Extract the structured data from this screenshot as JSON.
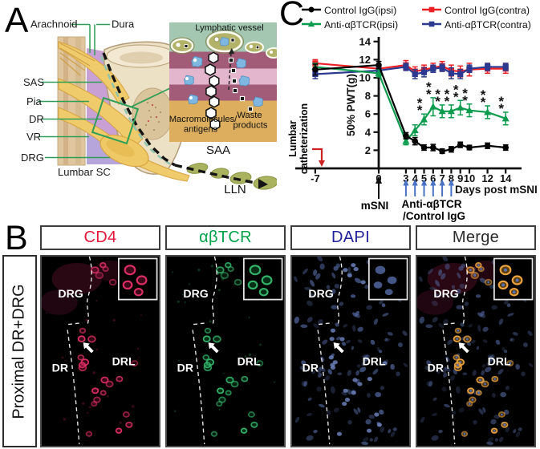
{
  "panel_a": {
    "label": "A",
    "labels": {
      "arachnoid": "Arachnoid",
      "dura": "Dura",
      "sas": "SAS",
      "pia": "Pia",
      "dr": "DR",
      "vr": "VR",
      "drg": "DRG"
    },
    "caption": "Lumbar SC",
    "inset": {
      "title": "Lymphatic vessel",
      "macromolecules_line1": "Macromolecules/",
      "macromolecules_line2": "antigens",
      "waste_line1": "Waste",
      "waste_line2": "products",
      "caption": "SAA"
    },
    "lln": "LLN"
  },
  "panel_c": {
    "label": "C"
  },
  "panel_b": {
    "label": "B",
    "row_label": "Proximal DR+DRG",
    "channels": [
      {
        "id": "cd4",
        "name": "CD4",
        "color": "#e3173a"
      },
      {
        "id": "abtcr",
        "name": "αβTCR",
        "color": "#00a14b"
      },
      {
        "id": "dapi",
        "name": "DAPI",
        "color": "#22219b"
      },
      {
        "id": "merge",
        "name": "Merge",
        "color": "#2a2a2a"
      }
    ],
    "region_labels": {
      "drg": "DRG",
      "dr": "DR",
      "drl": "DRL"
    }
  },
  "chart_data": {
    "type": "line",
    "title": "",
    "xlabel": "Days post mSNI",
    "ylabel": "50% PWT(g)",
    "x": [
      -7,
      0,
      3,
      4,
      5,
      6,
      7,
      8,
      9,
      10,
      12,
      14
    ],
    "xtick_labels": [
      "-7",
      "0",
      "3",
      "4",
      "5",
      "6",
      "7",
      "8",
      "9",
      "10",
      "12",
      "14"
    ],
    "ylim": [
      0,
      14
    ],
    "yticks": [
      2,
      4,
      6,
      8,
      10,
      12,
      14
    ],
    "grid": false,
    "legend_position": "top",
    "series": [
      {
        "name": "Control IgG(ipsi)",
        "color": "#000000",
        "marker": "circle",
        "values": [
          10.9,
          11.4,
          3.6,
          3.0,
          2.3,
          2.3,
          1.9,
          2.1,
          2.6,
          2.3,
          2.5,
          2.3
        ],
        "errors": [
          0.6,
          0.4,
          0.35,
          0.4,
          0.3,
          0.35,
          0.25,
          0.3,
          0.3,
          0.25,
          0.3,
          0.3
        ]
      },
      {
        "name": "Control IgG(contra)",
        "color": "#ec2024",
        "marker": "square",
        "values": [
          11.6,
          11.0,
          11.4,
          10.7,
          10.9,
          11.1,
          11.3,
          10.8,
          10.7,
          10.9,
          11.0,
          11.0
        ],
        "errors": [
          0.4,
          0.4,
          0.5,
          0.5,
          0.5,
          0.5,
          0.5,
          0.6,
          0.6,
          0.7,
          0.5,
          0.5
        ]
      },
      {
        "name": "Anti-αβTCR(ipsi)",
        "color": "#0d9c4e",
        "marker": "triangle",
        "values": [
          11.2,
          10.5,
          3.0,
          4.2,
          5.4,
          6.8,
          6.3,
          6.3,
          6.7,
          6.4,
          6.2,
          5.5
        ],
        "errors": [
          0.4,
          0.4,
          0.4,
          0.6,
          0.6,
          1.0,
          0.7,
          0.7,
          0.8,
          0.7,
          0.7,
          0.7
        ]
      },
      {
        "name": "Anti-αβTCR(contra)",
        "color": "#2b3a90",
        "marker": "square",
        "values": [
          10.4,
          10.8,
          11.2,
          10.4,
          10.6,
          11.0,
          11.1,
          10.5,
          10.4,
          11.0,
          11.2,
          11.2
        ],
        "errors": [
          0.5,
          0.4,
          0.4,
          0.5,
          0.5,
          0.4,
          0.4,
          0.6,
          0.5,
          0.4,
          0.4,
          0.4
        ]
      }
    ],
    "significance": {
      "symbol": "**",
      "series": "Anti-αβTCR(ipsi)",
      "days": [
        5,
        6,
        7,
        8,
        9,
        10,
        12,
        14
      ]
    },
    "annotations": {
      "lumbar_line1": "Lumbar",
      "lumbar_line2": "catheterization",
      "msni": "mSNI",
      "treatment_line1": "Anti-αβTCR",
      "treatment_line2": "/Control IgG",
      "treatment_days": [
        3,
        4,
        5,
        6,
        7,
        8
      ]
    }
  }
}
